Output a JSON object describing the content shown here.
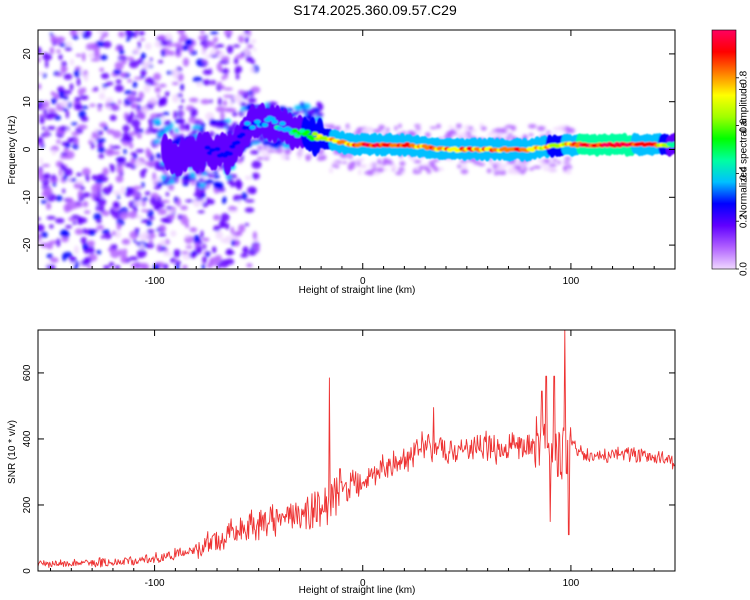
{
  "title": "S174.2025.360.09.57.C29",
  "chart_data": [
    {
      "type": "heatmap",
      "title": "S174.2025.360.09.57.C29",
      "xlabel": "Height of straight line (km)",
      "ylabel": "Frequency (Hz)",
      "xlim": [
        -156,
        150
      ],
      "ylim": [
        -25,
        25
      ],
      "xticks": [
        -100,
        0,
        100
      ],
      "xtick_labels": [
        "-100",
        "0",
        "100"
      ],
      "yticks": [
        -20,
        -10,
        0,
        10,
        20
      ],
      "ytick_labels": [
        "-20",
        "-10",
        "0",
        "10",
        "20"
      ],
      "colorbar": {
        "label": "Normalized spectral amplitude",
        "range": [
          0,
          1
        ],
        "ticks": [
          0.0,
          0.2,
          0.4,
          0.6,
          0.8
        ],
        "tick_labels": [
          "0.0",
          "0.2",
          "0.4",
          "0.6",
          "0.8"
        ],
        "colors": [
          "#f0d8ff",
          "#b060ff",
          "#6000ff",
          "#0000ff",
          "#00c0ff",
          "#00ffa0",
          "#00ff00",
          "#a0ff00",
          "#ffff00",
          "#ff8000",
          "#ff0000",
          "#ff0060"
        ]
      },
      "ridge": {
        "x": [
          -95,
          -85,
          -75,
          -65,
          -55,
          -45,
          -35,
          -25,
          -15,
          -5,
          5,
          20,
          40,
          60,
          80,
          95,
          105,
          120,
          140,
          150
        ],
        "frequency": [
          -1,
          -2,
          0,
          -1,
          5,
          6,
          4,
          3,
          2,
          1,
          1,
          1,
          0,
          0,
          0,
          1,
          1,
          1,
          1,
          1
        ],
        "amplitude": [
          0.25,
          0.2,
          0.25,
          0.3,
          0.35,
          0.4,
          0.45,
          0.6,
          0.75,
          0.85,
          0.9,
          0.85,
          0.8,
          0.85,
          0.8,
          0.7,
          0.95,
          0.95,
          0.9,
          0.4
        ]
      }
    },
    {
      "type": "line",
      "xlabel": "Height of straight line (km)",
      "ylabel": "SNR (10 * v/v)",
      "xlim": [
        -156,
        150
      ],
      "ylim": [
        0,
        730
      ],
      "xticks": [
        -100,
        0,
        100
      ],
      "xtick_labels": [
        "-100",
        "0",
        "100"
      ],
      "yticks": [
        0,
        200,
        400,
        600
      ],
      "ytick_labels": [
        "0",
        "200",
        "400",
        "600"
      ],
      "color": "#ee3333",
      "series": [
        {
          "name": "SNR",
          "x": [
            -156,
            -130,
            -110,
            -100,
            -90,
            -80,
            -70,
            -60,
            -50,
            -40,
            -30,
            -20,
            -15,
            -10,
            0,
            10,
            20,
            30,
            40,
            50,
            60,
            70,
            80,
            85,
            90,
            95,
            100,
            105,
            110,
            120,
            130,
            140,
            145,
            150
          ],
          "y": [
            20,
            25,
            30,
            35,
            50,
            70,
            90,
            120,
            140,
            160,
            175,
            190,
            205,
            240,
            270,
            310,
            345,
            380,
            365,
            370,
            375,
            370,
            380,
            380,
            370,
            370,
            390,
            355,
            345,
            350,
            350,
            345,
            340,
            320
          ],
          "spikes": [
            {
              "x": -16,
              "y": 585
            },
            {
              "x": -11,
              "y": 310
            },
            {
              "x": 34,
              "y": 495
            },
            {
              "x": 86,
              "y": 545
            },
            {
              "x": 88,
              "y": 590
            },
            {
              "x": 90,
              "y": 150
            },
            {
              "x": 92,
              "y": 590
            },
            {
              "x": 97,
              "y": 730
            },
            {
              "x": 99,
              "y": 110
            }
          ]
        }
      ]
    }
  ]
}
